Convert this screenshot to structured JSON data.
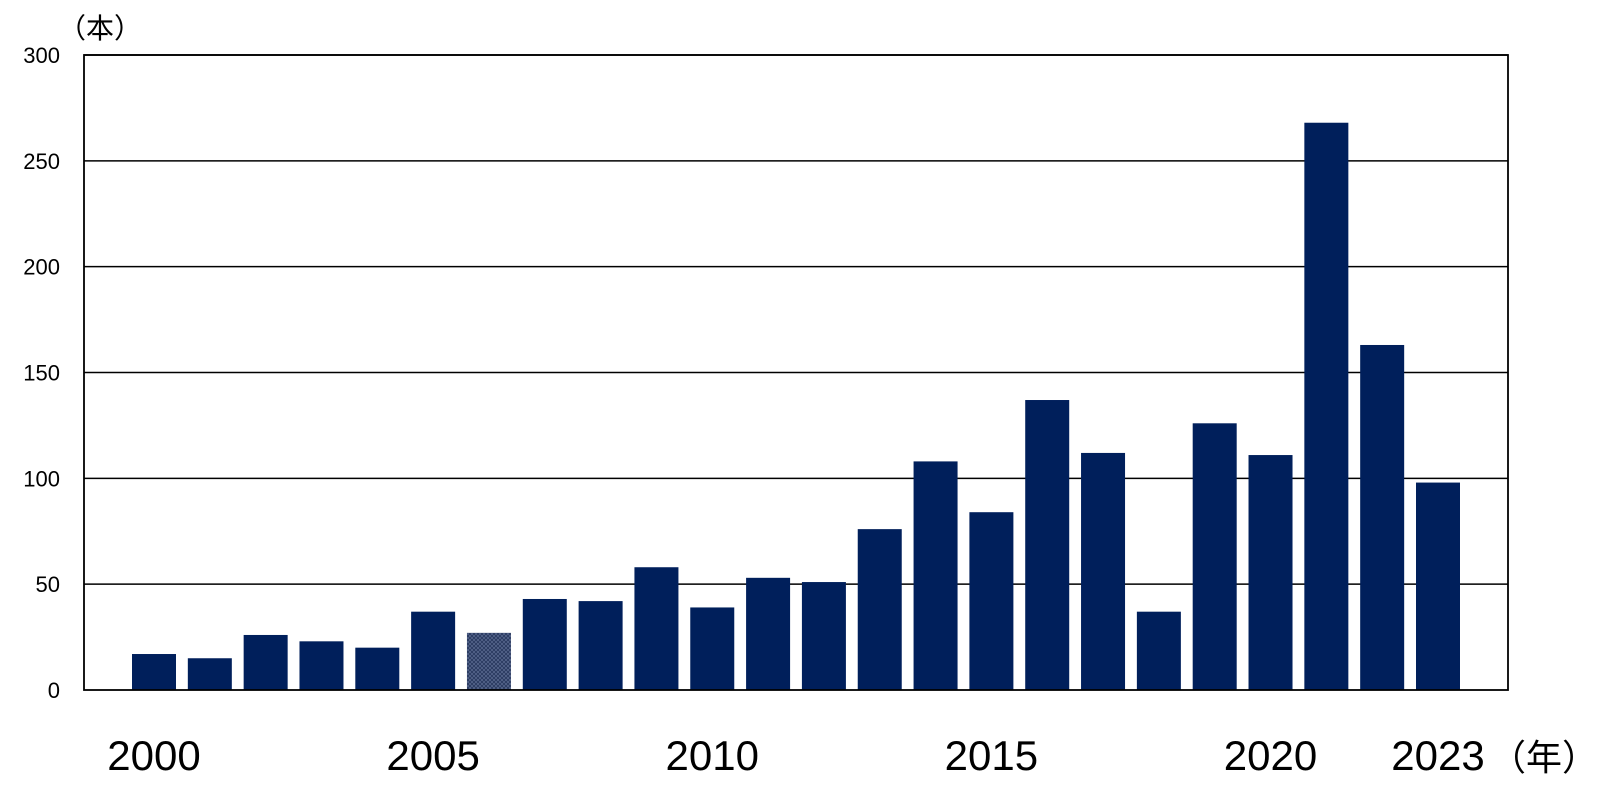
{
  "chart_data": {
    "type": "bar",
    "title": "",
    "ylabel": "（本）",
    "xlabel": "（年）",
    "ylim": [
      0,
      300
    ],
    "yticks": [
      0,
      50,
      100,
      150,
      200,
      250,
      300
    ],
    "grid": true,
    "categories": [
      "2000",
      "2001",
      "2002",
      "2003",
      "2004",
      "2005",
      "2006",
      "2007",
      "2008",
      "2009",
      "2010",
      "2011",
      "2012",
      "2013",
      "2014",
      "2015",
      "2016",
      "2017",
      "2018",
      "2019",
      "2020",
      "2021",
      "2022",
      "2023"
    ],
    "x_tick_labels": [
      {
        "category": "2000",
        "text": "2000"
      },
      {
        "category": "2005",
        "text": "2005"
      },
      {
        "category": "2010",
        "text": "2010"
      },
      {
        "category": "2015",
        "text": "2015"
      },
      {
        "category": "2020",
        "text": "2020"
      },
      {
        "category": "2023",
        "text": "2023"
      }
    ],
    "values": [
      17,
      15,
      26,
      23,
      20,
      37,
      27,
      43,
      42,
      58,
      39,
      53,
      51,
      76,
      108,
      84,
      137,
      112,
      37,
      126,
      111,
      268,
      163,
      98
    ],
    "colors": {
      "bar": "#001f5b",
      "highlight_bar": "#4a5a80",
      "grid": "#000000",
      "axis": "#000000"
    },
    "highlight_category": "2006"
  }
}
